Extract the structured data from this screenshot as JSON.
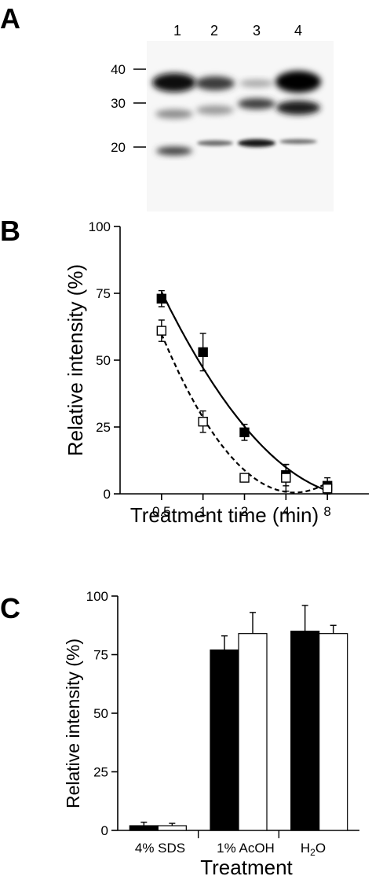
{
  "panel_a": {
    "letter": "A",
    "lane_labels": [
      "1",
      "2",
      "3",
      "4"
    ],
    "mw_markers": [
      "40",
      "30",
      "20"
    ]
  },
  "panel_b": {
    "letter": "B"
  },
  "panel_c": {
    "letter": "C",
    "ylabel": "Relative intensity (%)",
    "xlabel": "Treatment",
    "category_labels": [
      "4% SDS",
      "1% AcOH",
      "H"
    ],
    "h2o_subscript": "2",
    "h2o_suffix": "O"
  },
  "chart_data": [
    {
      "type": "scatter",
      "xlabel": "Treatment time (min)",
      "ylabel": "Relative intensity (%)",
      "x_scale": "log2",
      "x_ticks": [
        0.5,
        1,
        2,
        4,
        8
      ],
      "x_tick_labels": [
        "0.5",
        "1",
        "2",
        "4",
        "8"
      ],
      "xlim": [
        0.25,
        16
      ],
      "ylim": [
        0,
        100
      ],
      "y_ticks": [
        0,
        25,
        50,
        75,
        100
      ],
      "series": [
        {
          "marker": "filled-square",
          "x": [
            0.5,
            1,
            2,
            4,
            8
          ],
          "y": [
            73,
            53,
            23,
            7,
            3
          ],
          "error": [
            3,
            7,
            3,
            4,
            3
          ],
          "fit_line": "solid"
        },
        {
          "marker": "open-square",
          "x": [
            0.5,
            1,
            2,
            4,
            8
          ],
          "y": [
            61,
            27,
            6,
            6,
            2
          ],
          "error": [
            4,
            4,
            1,
            5,
            2
          ],
          "fit_line": "dashed"
        }
      ]
    },
    {
      "type": "bar",
      "xlabel": "Treatment",
      "ylabel": "Relative intensity (%)",
      "categories": [
        "4% SDS",
        "1% AcOH",
        "H2O"
      ],
      "ylim": [
        0,
        100
      ],
      "y_ticks": [
        0,
        25,
        50,
        75,
        100
      ],
      "series": [
        {
          "fill": "#000000",
          "values": [
            2,
            77,
            85
          ],
          "error": [
            1.5,
            6,
            11
          ]
        },
        {
          "fill": "#ffffff",
          "values": [
            2,
            84,
            84
          ],
          "error": [
            1,
            9,
            3.5
          ]
        }
      ]
    }
  ]
}
